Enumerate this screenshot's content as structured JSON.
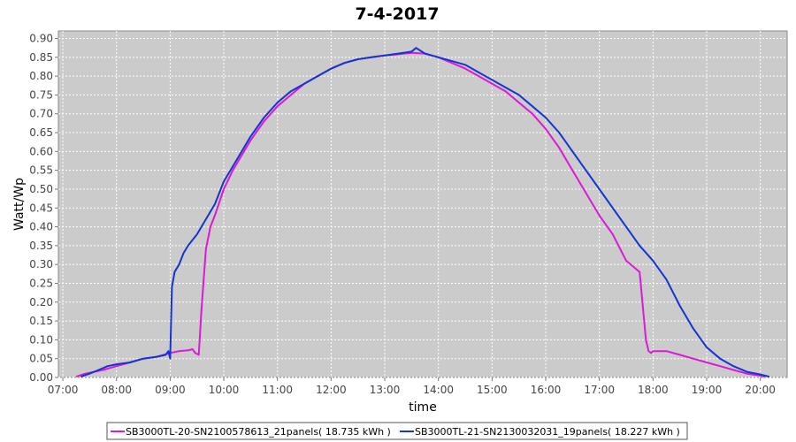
{
  "chart_data": {
    "type": "line",
    "title": "7-4-2017",
    "xlabel": "time",
    "ylabel": "Watt/Wp",
    "xlim": [
      "06:55",
      "20:30"
    ],
    "ylim": [
      0,
      0.92
    ],
    "x_ticks": [
      "07:00",
      "08:00",
      "09:00",
      "10:00",
      "11:00",
      "12:00",
      "13:00",
      "14:00",
      "15:00",
      "16:00",
      "17:00",
      "18:00",
      "19:00",
      "20:00"
    ],
    "y_ticks": [
      "0.00",
      "0.05",
      "0.10",
      "0.15",
      "0.20",
      "0.25",
      "0.30",
      "0.35",
      "0.40",
      "0.45",
      "0.50",
      "0.55",
      "0.60",
      "0.65",
      "0.70",
      "0.75",
      "0.80",
      "0.85",
      "0.90"
    ],
    "grid": true,
    "legend_position": "bottom",
    "series": [
      {
        "name": "SB3000TL-20-SN2100578613_21panels( 18.735 kWh )",
        "color": "#dd18d8",
        "x": [
          "07:15",
          "07:25",
          "07:35",
          "07:45",
          "08:00",
          "08:15",
          "08:30",
          "08:45",
          "09:00",
          "09:10",
          "09:20",
          "09:25",
          "09:28",
          "09:32",
          "09:35",
          "09:40",
          "09:45",
          "09:50",
          "10:00",
          "10:10",
          "10:20",
          "10:30",
          "10:45",
          "11:00",
          "11:15",
          "11:30",
          "11:45",
          "12:00",
          "12:15",
          "12:30",
          "12:45",
          "13:00",
          "13:15",
          "13:30",
          "13:45",
          "14:00",
          "14:15",
          "14:30",
          "14:45",
          "15:00",
          "15:15",
          "15:30",
          "15:45",
          "16:00",
          "16:15",
          "16:30",
          "16:45",
          "17:00",
          "17:15",
          "17:30",
          "17:40",
          "17:45",
          "17:52",
          "17:55",
          "17:58",
          "18:00",
          "18:15",
          "18:30",
          "18:45",
          "19:00",
          "19:15",
          "19:30",
          "19:45",
          "20:00",
          "20:05"
        ],
        "values": [
          0.002,
          0.01,
          0.015,
          0.02,
          0.03,
          0.04,
          0.05,
          0.055,
          0.065,
          0.07,
          0.072,
          0.075,
          0.065,
          0.06,
          0.18,
          0.34,
          0.4,
          0.43,
          0.5,
          0.55,
          0.59,
          0.63,
          0.68,
          0.72,
          0.75,
          0.78,
          0.8,
          0.82,
          0.835,
          0.845,
          0.85,
          0.855,
          0.858,
          0.862,
          0.86,
          0.85,
          0.835,
          0.82,
          0.8,
          0.78,
          0.76,
          0.73,
          0.7,
          0.66,
          0.61,
          0.55,
          0.49,
          0.43,
          0.38,
          0.31,
          0.29,
          0.28,
          0.1,
          0.07,
          0.065,
          0.07,
          0.07,
          0.06,
          0.05,
          0.04,
          0.03,
          0.02,
          0.01,
          0.005,
          0.002
        ]
      },
      {
        "name": "SB3000TL-21-SN2130032031_19panels( 18.227 kWh )",
        "color": "#1434d4",
        "x": [
          "07:20",
          "07:30",
          "07:40",
          "07:50",
          "08:00",
          "08:15",
          "08:30",
          "08:45",
          "08:55",
          "08:58",
          "09:00",
          "09:02",
          "09:05",
          "09:10",
          "09:15",
          "09:20",
          "09:30",
          "09:40",
          "09:50",
          "10:00",
          "10:15",
          "10:30",
          "10:45",
          "11:00",
          "11:15",
          "11:30",
          "11:45",
          "12:00",
          "12:15",
          "12:30",
          "12:45",
          "13:00",
          "13:15",
          "13:30",
          "13:35",
          "13:45",
          "14:00",
          "14:15",
          "14:30",
          "14:45",
          "15:00",
          "15:15",
          "15:30",
          "15:45",
          "16:00",
          "16:15",
          "16:30",
          "16:45",
          "17:00",
          "17:15",
          "17:30",
          "17:45",
          "18:00",
          "18:15",
          "18:30",
          "18:45",
          "19:00",
          "19:15",
          "19:30",
          "19:45",
          "20:00",
          "20:10"
        ],
        "values": [
          0.002,
          0.01,
          0.02,
          0.03,
          0.035,
          0.04,
          0.05,
          0.055,
          0.06,
          0.07,
          0.05,
          0.24,
          0.28,
          0.3,
          0.33,
          0.35,
          0.38,
          0.42,
          0.46,
          0.52,
          0.58,
          0.64,
          0.69,
          0.73,
          0.76,
          0.78,
          0.8,
          0.82,
          0.835,
          0.845,
          0.85,
          0.855,
          0.86,
          0.865,
          0.875,
          0.86,
          0.85,
          0.84,
          0.83,
          0.81,
          0.79,
          0.77,
          0.75,
          0.72,
          0.69,
          0.65,
          0.6,
          0.55,
          0.5,
          0.45,
          0.4,
          0.35,
          0.31,
          0.26,
          0.19,
          0.13,
          0.08,
          0.05,
          0.03,
          0.015,
          0.008,
          0.002
        ]
      }
    ]
  }
}
